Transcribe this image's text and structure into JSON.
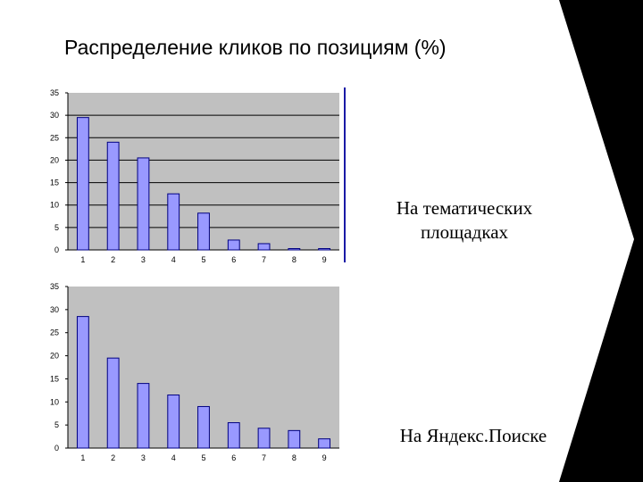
{
  "slide": {
    "title": "Распределение кликов по позициям (%)",
    "label_top": "На тематических площадках",
    "label_bottom": "На Яндекс.Поиске"
  },
  "colors": {
    "plot_bg": "#c0c0c0",
    "bar_fill": "#9999ff",
    "bar_stroke": "#000080",
    "chevron": "#000000"
  },
  "chart_data": [
    {
      "type": "bar",
      "title": "",
      "xlabel": "",
      "ylabel": "",
      "categories": [
        "1",
        "2",
        "3",
        "4",
        "5",
        "6",
        "7",
        "8",
        "9"
      ],
      "values": [
        29.5,
        24,
        20.5,
        12.5,
        8.2,
        2.2,
        1.4,
        0.3,
        0.3
      ],
      "ylim": [
        0,
        35
      ],
      "yticks": [
        "0",
        "5",
        "10",
        "15",
        "20",
        "25",
        "30",
        "35"
      ],
      "grid": true,
      "legend": "none"
    },
    {
      "type": "bar",
      "title": "",
      "xlabel": "",
      "ylabel": "",
      "categories": [
        "1",
        "2",
        "3",
        "4",
        "5",
        "6",
        "7",
        "8",
        "9"
      ],
      "values": [
        28.5,
        19.5,
        14,
        11.5,
        9,
        5.5,
        4.3,
        3.8,
        2
      ],
      "ylim": [
        0,
        35
      ],
      "yticks": [
        "0",
        "5",
        "10",
        "15",
        "20",
        "25",
        "30",
        "35"
      ],
      "grid": false,
      "legend": "none"
    }
  ]
}
